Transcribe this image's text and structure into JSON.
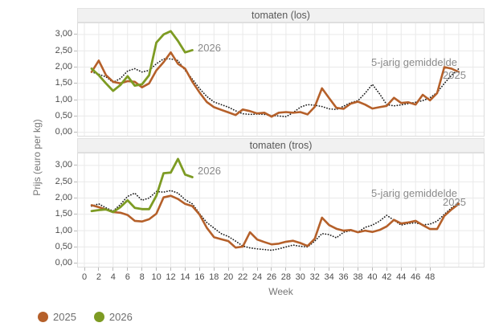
{
  "axes": {
    "y_title": "Prijs (euro per kg)",
    "x_title": "Week",
    "y_ticks": [
      {
        "label": "3,00",
        "value": 3.0
      },
      {
        "label": "2,50",
        "value": 2.5
      },
      {
        "label": "2,00",
        "value": 2.0
      },
      {
        "label": "1,50",
        "value": 1.5
      },
      {
        "label": "1,00",
        "value": 1.0
      },
      {
        "label": "0,50",
        "value": 0.5
      },
      {
        "label": "0,00",
        "value": 0.0
      }
    ],
    "x_ticks": [
      {
        "label": "0",
        "value": 0
      },
      {
        "label": "2",
        "value": 2
      },
      {
        "label": "4",
        "value": 4
      },
      {
        "label": "6",
        "value": 6
      },
      {
        "label": "8",
        "value": 8
      },
      {
        "label": "10",
        "value": 10
      },
      {
        "label": "12",
        "value": 12
      },
      {
        "label": "14",
        "value": 14
      },
      {
        "label": "16",
        "value": 16
      },
      {
        "label": "18",
        "value": 18
      },
      {
        "label": "20",
        "value": 20
      },
      {
        "label": "22",
        "value": 22
      },
      {
        "label": "24",
        "value": 24
      },
      {
        "label": "26",
        "value": 26
      },
      {
        "label": "28",
        "value": 28
      },
      {
        "label": "30",
        "value": 30
      },
      {
        "label": "32",
        "value": 32
      },
      {
        "label": "34",
        "value": 34
      },
      {
        "label": "36",
        "value": 36
      },
      {
        "label": "38",
        "value": 38
      },
      {
        "label": "40",
        "value": 40
      },
      {
        "label": "42",
        "value": 42
      },
      {
        "label": "44",
        "value": 44
      },
      {
        "label": "46",
        "value": 46
      },
      {
        "label": "48",
        "value": 48
      }
    ]
  },
  "legend": {
    "items": [
      {
        "label": "2025",
        "color": "#b5602a"
      },
      {
        "label": "2026",
        "color": "#7d9b23"
      }
    ]
  },
  "chart_data": [
    {
      "type": "line",
      "title": "tomaten (los)",
      "xlabel": "Week",
      "ylabel": "Prijs (euro per kg)",
      "ylim": [
        0,
        3.4
      ],
      "x_first_week": 1,
      "grid": true,
      "annotations": [
        "2026",
        "5-jarig gemiddelde",
        "2025"
      ],
      "series": [
        {
          "name": "5-jarig gemiddelde",
          "style": "dotted",
          "color": "#1c1c1c",
          "values": [
            1.85,
            1.78,
            1.7,
            1.53,
            1.65,
            1.88,
            1.95,
            1.85,
            1.9,
            2.1,
            2.25,
            2.25,
            2.2,
            1.9,
            1.63,
            1.34,
            1.1,
            0.93,
            0.85,
            0.77,
            0.66,
            0.57,
            0.55,
            0.56,
            0.55,
            0.52,
            0.5,
            0.48,
            0.6,
            0.77,
            0.85,
            0.83,
            0.79,
            0.72,
            0.7,
            0.8,
            0.91,
            0.97,
            1.2,
            1.47,
            1.18,
            0.85,
            0.81,
            0.84,
            0.88,
            0.92,
            0.97,
            1.06,
            1.22,
            1.5,
            1.75,
            1.95
          ]
        },
        {
          "name": "2025",
          "style": "solid",
          "color": "#b5602a",
          "values": [
            1.85,
            2.2,
            1.75,
            1.55,
            1.5,
            1.57,
            1.55,
            1.38,
            1.5,
            1.9,
            2.15,
            2.45,
            2.1,
            1.95,
            1.55,
            1.22,
            0.93,
            0.77,
            0.69,
            0.61,
            0.53,
            0.7,
            0.65,
            0.58,
            0.6,
            0.48,
            0.6,
            0.62,
            0.6,
            0.62,
            0.55,
            0.78,
            1.35,
            1.05,
            0.75,
            0.72,
            0.88,
            0.94,
            0.85,
            0.73,
            0.77,
            0.81,
            1.06,
            0.9,
            0.92,
            0.85,
            1.15,
            0.98,
            1.2,
            2.0,
            1.95,
            1.85
          ]
        },
        {
          "name": "2026",
          "style": "solid",
          "color": "#7d9b23",
          "values": [
            1.95,
            1.75,
            1.5,
            1.27,
            1.45,
            1.72,
            1.43,
            1.47,
            1.75,
            2.75,
            3.0,
            3.1,
            2.8,
            2.45,
            2.52
          ]
        }
      ]
    },
    {
      "type": "line",
      "title": "tomaten (tros)",
      "xlabel": "Week",
      "ylabel": "Prijs (euro per kg)",
      "ylim": [
        0,
        3.4
      ],
      "x_first_week": 1,
      "grid": true,
      "annotations": [
        "2026",
        "5-jarig gemiddelde",
        "2025"
      ],
      "series": [
        {
          "name": "5-jarig gemiddelde",
          "style": "dotted",
          "color": "#1c1c1c",
          "values": [
            1.75,
            1.82,
            1.7,
            1.6,
            1.8,
            2.05,
            2.15,
            1.93,
            2.0,
            2.2,
            2.18,
            2.23,
            2.15,
            1.95,
            1.82,
            1.52,
            1.25,
            1.08,
            0.91,
            0.82,
            0.68,
            0.53,
            0.47,
            0.44,
            0.42,
            0.4,
            0.44,
            0.5,
            0.56,
            0.52,
            0.5,
            0.68,
            0.91,
            0.88,
            0.78,
            0.95,
            1.0,
            0.95,
            1.1,
            1.17,
            1.29,
            1.47,
            1.32,
            1.17,
            1.22,
            1.24,
            1.18,
            1.2,
            1.29,
            1.5,
            1.7,
            1.85
          ]
        },
        {
          "name": "2025",
          "style": "solid",
          "color": "#b5602a",
          "values": [
            1.78,
            1.72,
            1.65,
            1.57,
            1.55,
            1.48,
            1.3,
            1.28,
            1.35,
            1.52,
            2.02,
            2.07,
            1.97,
            1.82,
            1.75,
            1.49,
            1.09,
            0.8,
            0.74,
            0.68,
            0.48,
            0.51,
            0.95,
            0.73,
            0.65,
            0.58,
            0.6,
            0.66,
            0.69,
            0.62,
            0.53,
            0.75,
            1.4,
            1.17,
            1.06,
            1.0,
            1.02,
            0.95,
            1.0,
            0.96,
            1.02,
            1.13,
            1.33,
            1.22,
            1.25,
            1.3,
            1.17,
            1.05,
            1.05,
            1.45,
            1.65,
            1.82
          ]
        },
        {
          "name": "2026",
          "style": "solid",
          "color": "#7d9b23",
          "values": [
            1.6,
            1.63,
            1.65,
            1.57,
            1.72,
            1.93,
            1.7,
            1.66,
            1.66,
            2.07,
            2.76,
            2.78,
            3.2,
            2.72,
            2.64
          ]
        }
      ]
    }
  ],
  "colors": {
    "grid": "#e9e9e9",
    "plot_border": "#dcdcdc",
    "strip_bg": "#f1f1f1",
    "tick_text": "#4d4d4d",
    "annotation_text": "#8a8a8a"
  }
}
